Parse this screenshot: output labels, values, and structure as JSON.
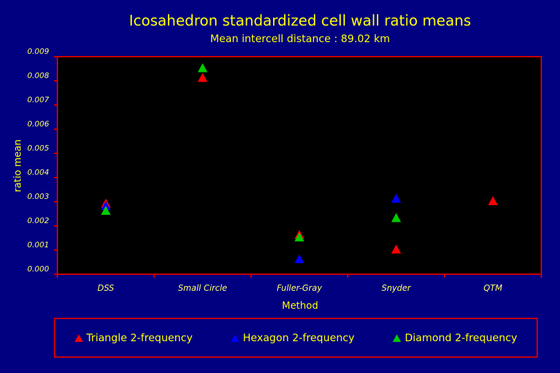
{
  "chart_data": {
    "type": "scatter",
    "title": "Icosahedron standardized cell wall ratio means",
    "subtitle": "Mean intercell distance : 89.02 km",
    "xlabel": "Method",
    "ylabel": "ratio mean",
    "categories": [
      "DSS",
      "Small Circle",
      "Fuller-Gray",
      "Snyder",
      "QTM"
    ],
    "ylim": [
      0,
      0.009
    ],
    "yticks": [
      "0.000",
      "0.001",
      "0.002",
      "0.003",
      "0.004",
      "0.005",
      "0.006",
      "0.007",
      "0.008",
      "0.009"
    ],
    "legend_position": "bottom",
    "series": [
      {
        "name": "Triangle 2-frequency",
        "color": "#ff0000",
        "values": [
          0.0029,
          0.0081,
          0.0016,
          0.001,
          0.003
        ]
      },
      {
        "name": "Hexagon 2-frequency",
        "color": "#0000ff",
        "values": [
          0.0028,
          null,
          0.0006,
          0.0031,
          null
        ]
      },
      {
        "name": "Diamond 2-frequency",
        "color": "#00cc00",
        "values": [
          0.0026,
          0.0085,
          0.0015,
          0.0023,
          null
        ]
      }
    ]
  },
  "colors": {
    "background": "#000080",
    "plot_area": "#000000",
    "frame": "#cc0000",
    "text": "#ffff00",
    "tick_label": "#ffff66"
  }
}
